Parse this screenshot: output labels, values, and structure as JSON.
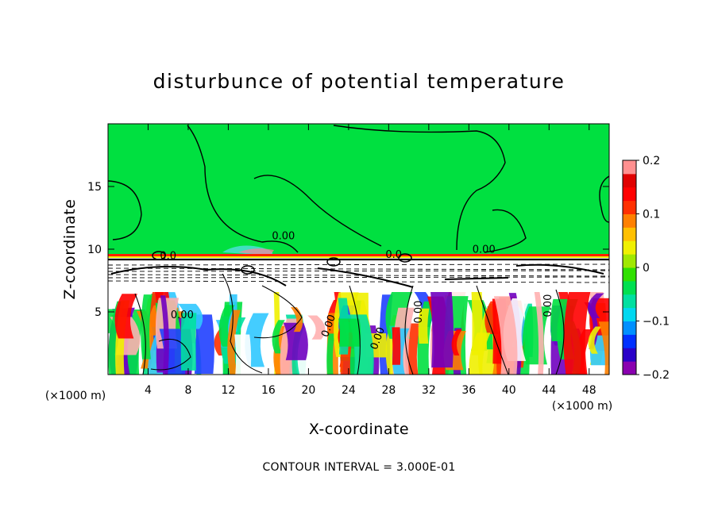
{
  "chart_data": {
    "type": "heatmap",
    "title": "disturbunce of potential temperature",
    "xlabel": "X-coordinate",
    "ylabel": "Z-coordinate",
    "x_unit": "(×1000 m)",
    "y_unit": "(×1000 m)",
    "xlim": [
      0,
      50
    ],
    "ylim": [
      0,
      20
    ],
    "x_ticks": [
      "4",
      "8",
      "12",
      "16",
      "20",
      "24",
      "28",
      "32",
      "36",
      "40",
      "44",
      "48"
    ],
    "x_tick_values": [
      4,
      8,
      12,
      16,
      20,
      24,
      28,
      32,
      36,
      40,
      44,
      48
    ],
    "y_ticks": [
      "5",
      "10",
      "15"
    ],
    "y_tick_values": [
      5,
      10,
      15
    ],
    "colorbar": {
      "min": -0.2,
      "max": 0.2,
      "ticks": [
        "0.2",
        "0.1",
        "0",
        "−0.1",
        "−0.2"
      ],
      "tick_values": [
        0.2,
        0.1,
        0,
        -0.1,
        -0.2
      ],
      "colors": [
        "#8a00b0",
        "#2a00c8",
        "#0030ff",
        "#0090ff",
        "#00d8f0",
        "#00e0a0",
        "#00e050",
        "#30e000",
        "#a0e800",
        "#f0f000",
        "#ffc000",
        "#ff8000",
        "#ff3000",
        "#ff0000",
        "#e00000",
        "#ff9090"
      ]
    },
    "contour_labels": [
      {
        "text": "0.00",
        "x": 17.5,
        "z": 10.8
      },
      {
        "text": "0.00",
        "x": 37.5,
        "z": 9.7
      },
      {
        "text": "0.0",
        "x": 6.0,
        "z": 9.2
      },
      {
        "text": "0.0",
        "x": 28.5,
        "z": 9.3
      },
      {
        "text": "0.00",
        "x": 7.4,
        "z": 4.5
      },
      {
        "text": "0.00",
        "x": 22.3,
        "z": 3.8
      },
      {
        "text": "0.00",
        "x": 27.2,
        "z": 2.8
      },
      {
        "text": "0.00",
        "x": 31.3,
        "z": 5.0
      },
      {
        "text": "0.00",
        "x": 44.2,
        "z": 5.5
      }
    ],
    "footer": "CONTOUR INTERVAL = 3.000E-01"
  }
}
